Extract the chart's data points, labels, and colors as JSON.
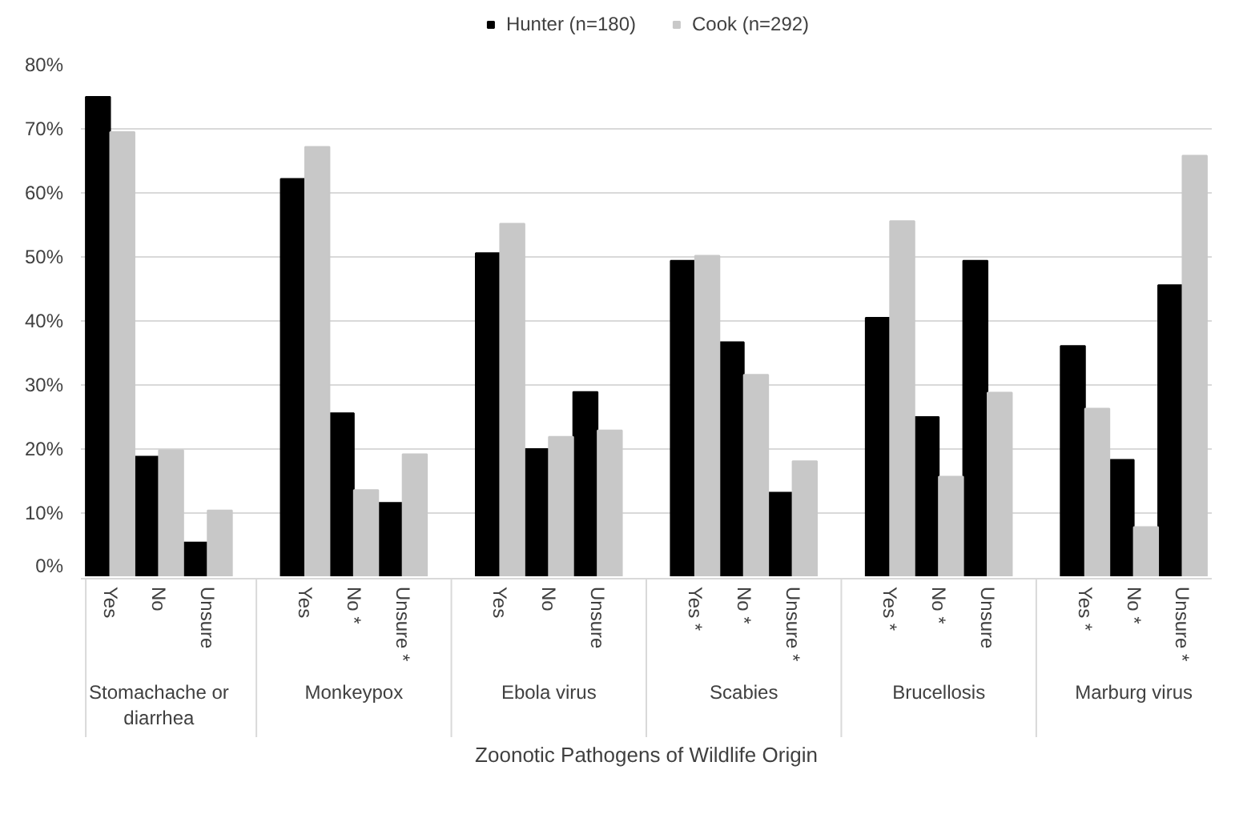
{
  "chart_data": {
    "type": "bar",
    "xlabel": "Zoonotic Pathogens of Wildlife Origin",
    "categories": [
      "Yes",
      "No",
      "Unsure",
      "Yes",
      "No *",
      "Unsure *",
      "Yes",
      "No",
      "Unsure",
      "Yes *",
      "No *",
      "Unsure *",
      "Yes *",
      "No *",
      "Unsure",
      "Yes *",
      "No *",
      "Unsure *"
    ],
    "annotations": [
      "Stomachache or diarrhea",
      "Monkeypox",
      "Ebola virus",
      "Scabies",
      "Brucellosis",
      "Marburg virus"
    ],
    "series": [
      {
        "name": "Hunter (n=180)",
        "color": "#000000",
        "values": [
          75,
          18.8,
          5.4,
          62.2,
          25.6,
          11.6,
          50.6,
          20,
          28.9,
          49.4,
          36.7,
          13.2,
          40.5,
          25.0,
          49.4,
          36.1,
          18.3,
          45.6
        ]
      },
      {
        "name": "Cook (n=292)",
        "color": "#c8c8c8",
        "values": [
          69.5,
          19.8,
          10.4,
          67.2,
          13.6,
          19.2,
          55.2,
          21.9,
          22.9,
          50.2,
          31.6,
          18.1,
          55.6,
          15.7,
          28.8,
          26.3,
          7.8,
          65.8
        ]
      }
    ],
    "ylim": [
      0,
      80
    ],
    "yticks": [
      {
        "value": 0,
        "label": "0%"
      },
      {
        "value": 10,
        "label": "10%"
      },
      {
        "value": 20,
        "label": "20%"
      },
      {
        "value": 30,
        "label": "30%"
      },
      {
        "value": 40,
        "label": "40%"
      },
      {
        "value": 50,
        "label": "50%"
      },
      {
        "value": 60,
        "label": "60%"
      },
      {
        "value": 70,
        "label": "70%"
      },
      {
        "value": 80,
        "label": "80%"
      }
    ],
    "grid": "y",
    "legend": "top"
  }
}
